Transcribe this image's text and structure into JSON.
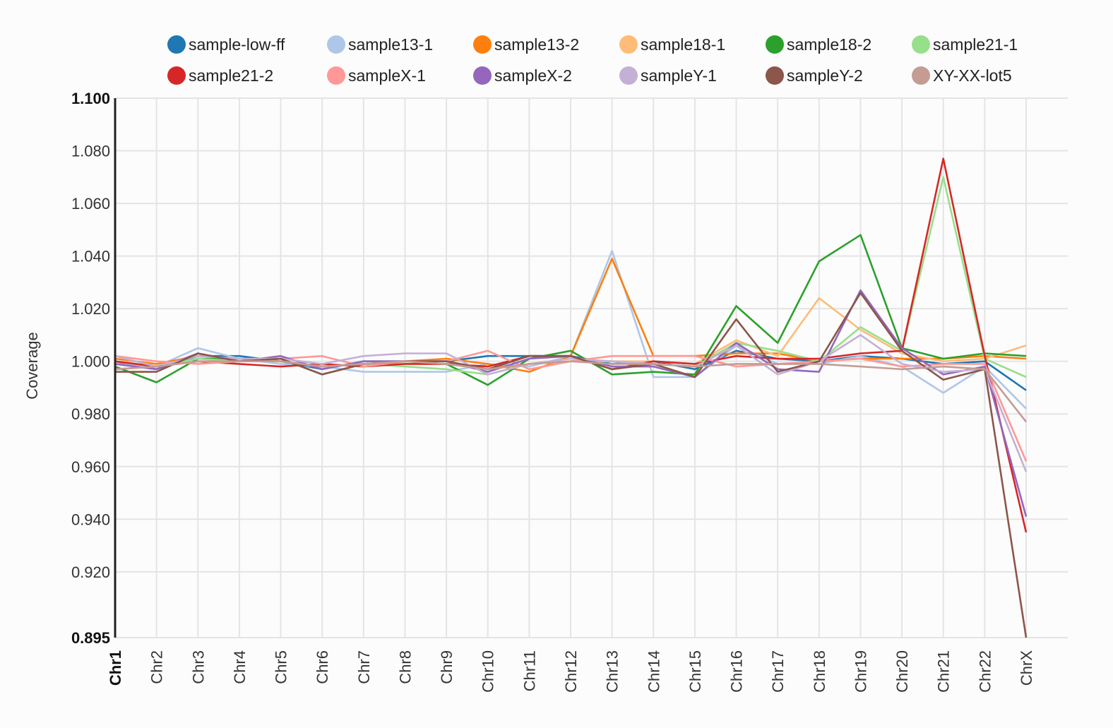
{
  "chart_data": {
    "type": "line",
    "ylabel": "Coverage",
    "ylim": [
      0.895,
      1.1
    ],
    "ytick_labels": [
      "0.895",
      "0.920",
      "0.940",
      "0.960",
      "0.980",
      "1.000",
      "1.020",
      "1.040",
      "1.060",
      "1.080",
      "1.100"
    ],
    "ytick_values": [
      0.895,
      0.92,
      0.94,
      0.96,
      0.98,
      1.0,
      1.02,
      1.04,
      1.06,
      1.08,
      1.1
    ],
    "grid": true,
    "legend_position": "top",
    "categories": [
      "Chr1",
      "Chr2",
      "Chr3",
      "Chr4",
      "Chr5",
      "Chr6",
      "Chr7",
      "Chr8",
      "Chr9",
      "Chr10",
      "Chr11",
      "Chr12",
      "Chr13",
      "Chr14",
      "Chr15",
      "Chr16",
      "Chr17",
      "Chr18",
      "Chr19",
      "Chr20",
      "Chr21",
      "Chr22",
      "ChrX"
    ],
    "series": [
      {
        "name": "sample-low-ff",
        "color": "#1f77b4",
        "values": [
          1.0,
          0.997,
          1.002,
          1.002,
          1.0,
          0.997,
          1.0,
          1.0,
          1.0,
          1.002,
          1.002,
          1.002,
          0.999,
          1.0,
          0.997,
          1.004,
          1.001,
          1.0,
          1.002,
          1.001,
          0.999,
          1.0,
          0.989
        ]
      },
      {
        "name": "sample13-1",
        "color": "#aec7e8",
        "values": [
          0.999,
          0.998,
          1.005,
          1.001,
          0.999,
          0.998,
          0.996,
          0.996,
          0.996,
          0.999,
          0.998,
          1.002,
          1.042,
          0.994,
          0.994,
          1.006,
          0.999,
          0.999,
          1.002,
          0.998,
          0.988,
          0.998,
          0.982
        ]
      },
      {
        "name": "sample13-2",
        "color": "#ff7f0e",
        "values": [
          1.001,
          0.999,
          1.002,
          1.001,
          1.0,
          0.998,
          0.999,
          1.0,
          1.001,
          0.999,
          0.996,
          1.002,
          1.039,
          1.002,
          1.002,
          1.003,
          1.003,
          1.0,
          1.001,
          1.001,
          1.001,
          1.002,
          1.001
        ]
      },
      {
        "name": "sample18-1",
        "color": "#ffbb78",
        "values": [
          1.0,
          0.998,
          1.001,
          1.0,
          1.0,
          0.998,
          0.999,
          0.999,
          0.999,
          0.997,
          0.999,
          1.0,
          1.0,
          1.0,
          0.999,
          1.008,
          1.002,
          1.024,
          1.012,
          1.003,
          1.0,
          1.001,
          1.006
        ]
      },
      {
        "name": "sample18-2",
        "color": "#2ca02c",
        "values": [
          0.998,
          0.992,
          1.001,
          1.001,
          1.001,
          0.995,
          0.999,
          1.0,
          0.999,
          0.991,
          1.001,
          1.004,
          0.995,
          0.996,
          0.995,
          1.021,
          1.007,
          1.038,
          1.048,
          1.005,
          1.001,
          1.003,
          1.002
        ]
      },
      {
        "name": "sample21-1",
        "color": "#98df8a",
        "values": [
          0.997,
          0.998,
          1.001,
          1.0,
          1.0,
          0.998,
          0.999,
          0.998,
          0.997,
          0.995,
          0.999,
          1.0,
          1.0,
          0.999,
          0.998,
          1.007,
          1.004,
          1.0,
          1.013,
          1.004,
          1.07,
          1.001,
          0.994
        ]
      },
      {
        "name": "sample21-2",
        "color": "#d62728",
        "values": [
          1.0,
          0.998,
          1.0,
          0.999,
          0.998,
          0.999,
          0.998,
          0.999,
          0.999,
          0.998,
          1.002,
          1.002,
          0.997,
          1.0,
          0.999,
          1.002,
          1.001,
          1.001,
          1.003,
          1.004,
          1.077,
          1.002,
          0.935
        ]
      },
      {
        "name": "sampleX-1",
        "color": "#ff9896",
        "values": [
          1.002,
          1.0,
          0.999,
          1.0,
          1.001,
          1.002,
          0.998,
          1.0,
          1.0,
          1.004,
          0.997,
          1.0,
          1.002,
          1.002,
          1.002,
          0.998,
          0.999,
          1.0,
          1.001,
          0.998,
          0.999,
          0.999,
          0.962
        ]
      },
      {
        "name": "sampleX-2",
        "color": "#9467bd",
        "values": [
          0.999,
          0.997,
          1.003,
          1.0,
          1.002,
          0.997,
          1.0,
          1.0,
          1.0,
          0.996,
          1.001,
          1.002,
          0.998,
          0.998,
          0.994,
          1.007,
          0.997,
          0.996,
          1.027,
          1.005,
          0.995,
          0.998,
          0.941
        ]
      },
      {
        "name": "sampleY-1",
        "color": "#c5b0d5",
        "values": [
          1.002,
          0.998,
          1.002,
          1.001,
          1.001,
          0.999,
          1.002,
          1.003,
          1.003,
          0.995,
          0.999,
          1.001,
          1.0,
          0.999,
          0.998,
          1.006,
          0.995,
          1.0,
          1.01,
          0.999,
          0.996,
          0.997,
          0.958
        ]
      },
      {
        "name": "sampleY-2",
        "color": "#8c564b",
        "values": [
          0.996,
          0.996,
          1.003,
          1.0,
          1.001,
          0.995,
          0.999,
          1.0,
          1.0,
          0.997,
          1.002,
          1.002,
          0.997,
          0.999,
          0.994,
          1.016,
          0.996,
          1.0,
          1.026,
          1.004,
          0.993,
          0.997,
          0.895
        ]
      },
      {
        "name": "XY-XX-lot5",
        "color": "#c49c94",
        "values": [
          0.997,
          0.998,
          1.0,
          1.0,
          1.0,
          0.998,
          0.999,
          1.0,
          0.999,
          0.997,
          0.999,
          1.0,
          0.999,
          0.999,
          0.998,
          0.999,
          0.999,
          0.999,
          0.998,
          0.997,
          0.998,
          0.997,
          0.977
        ]
      }
    ]
  }
}
